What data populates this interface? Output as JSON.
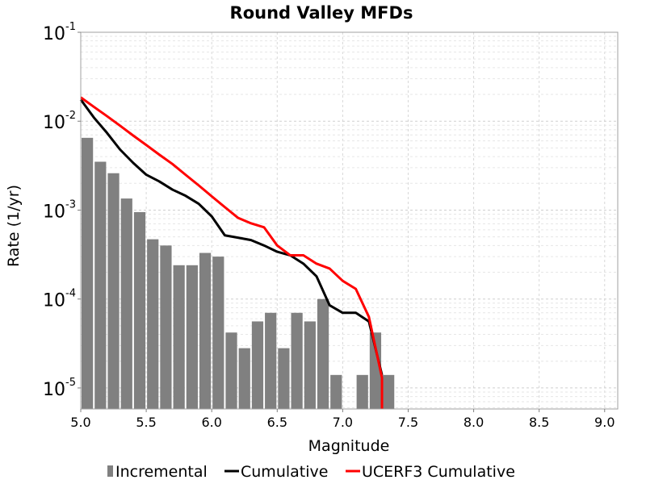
{
  "chart_data": {
    "type": "bar+line",
    "title": "Round Valley MFDs",
    "xlabel": "Magnitude",
    "ylabel": "Rate (1/yr)",
    "xlim": [
      5.0,
      9.1
    ],
    "ylim": [
      5.8e-06,
      0.1
    ],
    "yscale": "log",
    "grid": true,
    "legend_position": "bottom",
    "xticks": [
      "5.0",
      "5.5",
      "6.0",
      "6.5",
      "7.0",
      "7.5",
      "8.0",
      "8.5",
      "9.0"
    ],
    "yticks": [
      {
        "base": "10",
        "exp": "-1"
      },
      {
        "base": "10",
        "exp": "-2"
      },
      {
        "base": "10",
        "exp": "-3"
      },
      {
        "base": "10",
        "exp": "-4"
      },
      {
        "base": "10",
        "exp": "-5"
      }
    ],
    "incremental": {
      "name": "Incremental",
      "color": "#808080",
      "bin_width": 0.1,
      "x": [
        5.05,
        5.15,
        5.25,
        5.35,
        5.45,
        5.55,
        5.65,
        5.75,
        5.85,
        5.95,
        6.05,
        6.15,
        6.25,
        6.35,
        6.45,
        6.55,
        6.65,
        6.75,
        6.85,
        6.95,
        7.15,
        7.25,
        7.35
      ],
      "values": [
        0.0065,
        0.0035,
        0.0026,
        0.00135,
        0.00095,
        0.00047,
        0.0004,
        0.00024,
        0.00024,
        0.00033,
        0.0003,
        4.2e-05,
        2.8e-05,
        5.6e-05,
        7e-05,
        2.8e-05,
        7e-05,
        5.6e-05,
        0.0001,
        1.4e-05,
        1.4e-05,
        4.2e-05,
        1.4e-05
      ]
    },
    "series": [
      {
        "name": "Cumulative",
        "color": "#000000",
        "x": [
          5.0,
          5.1,
          5.2,
          5.3,
          5.4,
          5.5,
          5.6,
          5.7,
          5.8,
          5.9,
          6.0,
          6.1,
          6.2,
          6.3,
          6.4,
          6.5,
          6.6,
          6.7,
          6.8,
          6.9,
          7.0,
          7.1,
          7.2,
          7.3
        ],
        "values": [
          0.0175,
          0.011,
          0.0074,
          0.0048,
          0.0034,
          0.0025,
          0.0021,
          0.0017,
          0.00145,
          0.00118,
          0.00085,
          0.00052,
          0.00049,
          0.00046,
          0.0004,
          0.00034,
          0.00031,
          0.00025,
          0.00018,
          8.5e-05,
          7e-05,
          7e-05,
          5.6e-05,
          1.4e-05
        ]
      },
      {
        "name": "UCERF3 Cumulative",
        "color": "#ff0000",
        "x": [
          5.0,
          5.1,
          5.2,
          5.3,
          5.4,
          5.5,
          5.6,
          5.7,
          5.8,
          5.9,
          6.0,
          6.1,
          6.2,
          6.3,
          6.4,
          6.5,
          6.6,
          6.7,
          6.8,
          6.9,
          7.0,
          7.1,
          7.2,
          7.3,
          7.3
        ],
        "values": [
          0.0185,
          0.0145,
          0.0114,
          0.0089,
          0.0069,
          0.0054,
          0.0042,
          0.0033,
          0.0025,
          0.0019,
          0.00143,
          0.00108,
          0.00082,
          0.00071,
          0.00064,
          0.0004,
          0.00031,
          0.00031,
          0.00025,
          0.00022,
          0.00016,
          0.00013,
          6.3e-05,
          1.3e-05,
          5.8e-06
        ]
      }
    ]
  }
}
